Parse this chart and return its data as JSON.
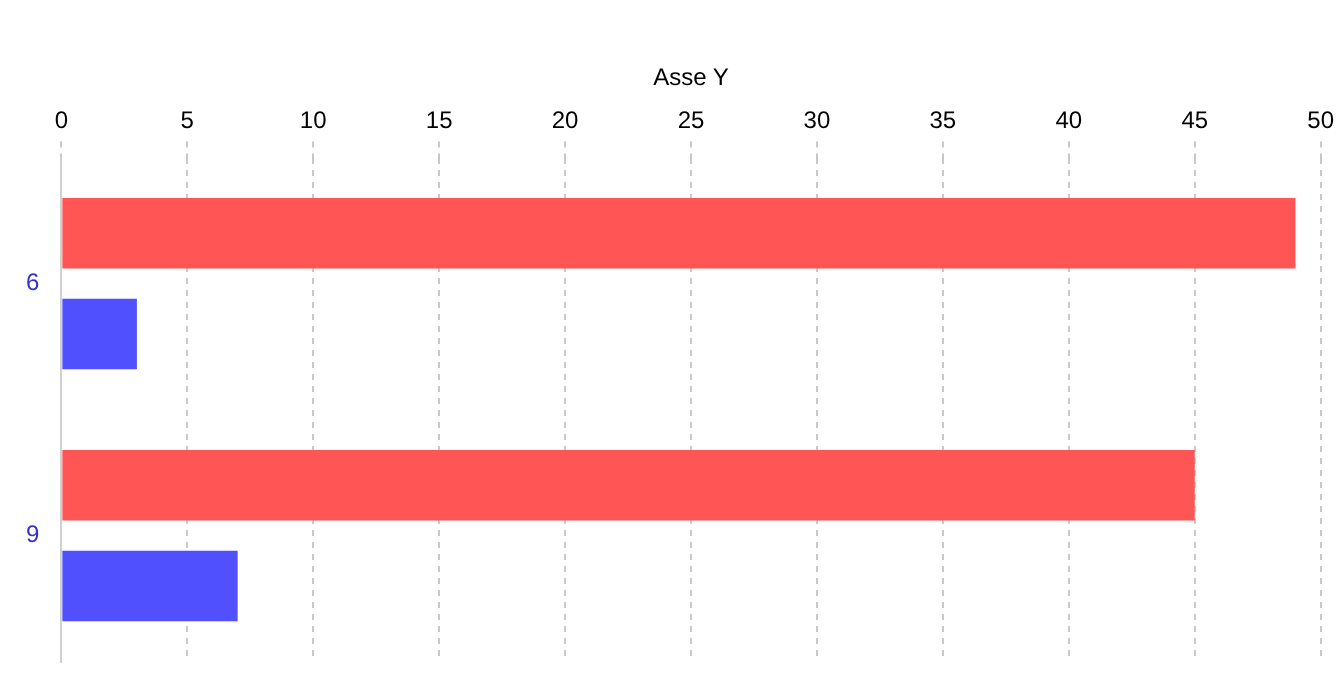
{
  "chart_data": {
    "type": "bar",
    "orientation": "horizontal",
    "xlabel": "Asse Y",
    "categories": [
      "6",
      "9"
    ],
    "series": [
      {
        "color": "#ff5555",
        "values": [
          49,
          45
        ]
      },
      {
        "color": "#5050ff",
        "values": [
          3,
          7
        ]
      }
    ],
    "xlim": [
      0,
      50
    ],
    "xticks": [
      0,
      5,
      10,
      15,
      20,
      25,
      30,
      35,
      40,
      45,
      50
    ],
    "grid": "x",
    "legend": false
  }
}
